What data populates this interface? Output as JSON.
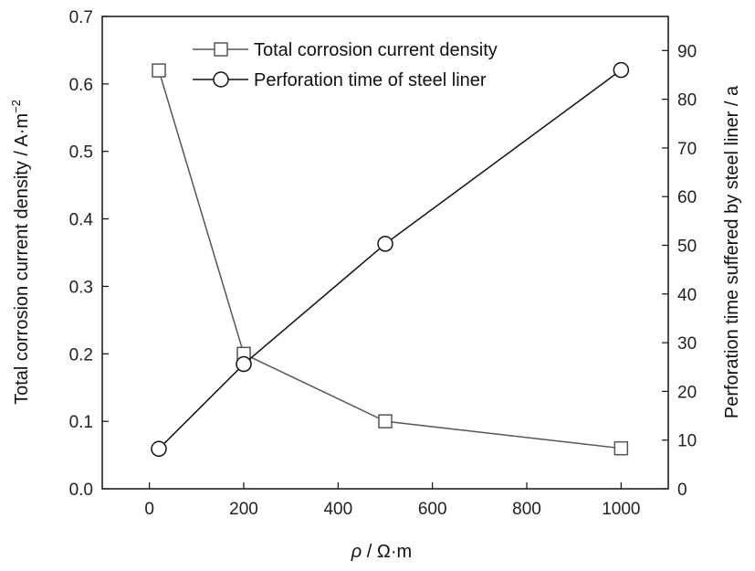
{
  "chart_data": {
    "type": "line",
    "x": [
      20,
      200,
      500,
      1000
    ],
    "xlabel_var": "ρ",
    "xlabel_unit": " / Ω·m",
    "xlim": [
      -100,
      1100
    ],
    "xticks": [
      0,
      200,
      400,
      600,
      800,
      1000
    ],
    "left_axis": {
      "label": "Total corrosion current density / A·m",
      "label_sup": "−2",
      "ylim": [
        0,
        0.7
      ],
      "ticks": [
        0.0,
        0.1,
        0.2,
        0.3,
        0.4,
        0.5,
        0.6,
        0.7
      ],
      "tick_labels": [
        "0.0",
        "0.1",
        "0.2",
        "0.3",
        "0.4",
        "0.5",
        "0.6",
        "0.7"
      ]
    },
    "right_axis": {
      "label": "Perforation time suffered by steel liner / a",
      "ylim": [
        0,
        97
      ],
      "ticks": [
        0,
        10,
        20,
        30,
        40,
        50,
        60,
        70,
        80,
        90
      ]
    },
    "series": [
      {
        "name": "Total corrosion current density",
        "axis": "left",
        "marker": "square",
        "color": "#555555",
        "values": [
          0.62,
          0.2,
          0.1,
          0.06
        ]
      },
      {
        "name": "Perforation time of steel liner",
        "axis": "right",
        "marker": "circle",
        "color": "#111111",
        "values": [
          8.2,
          25.6,
          50.3,
          86.0
        ]
      }
    ],
    "legend_position": "top-center",
    "grid": false
  }
}
